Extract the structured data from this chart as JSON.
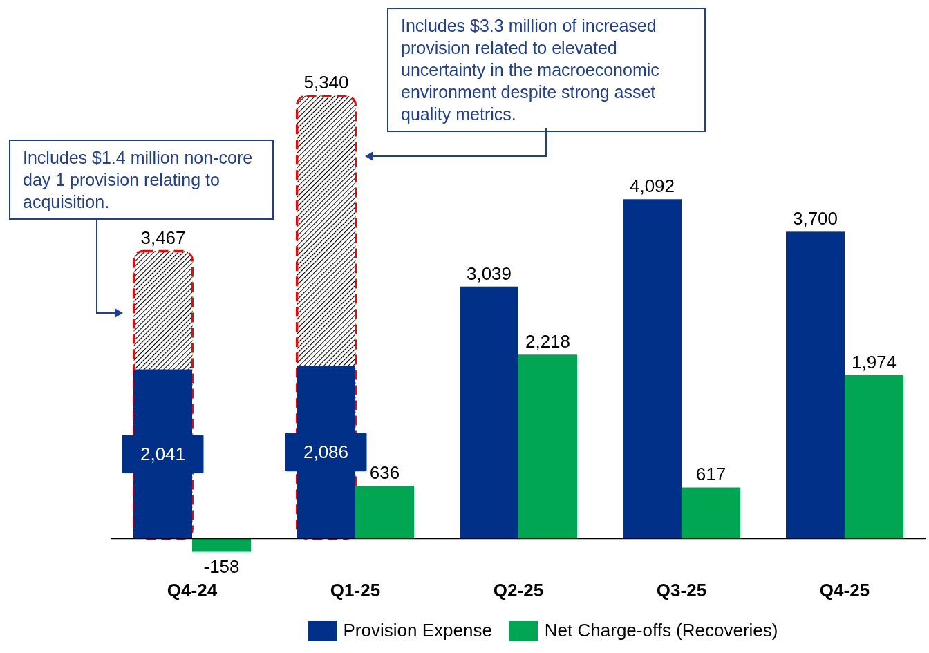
{
  "chart_data": {
    "type": "bar",
    "categories": [
      "Q4-24",
      "Q1-25",
      "Q2-25",
      "Q3-25",
      "Q4-25"
    ],
    "series": [
      {
        "color": "#ff0000",
        "values": [
          3467,
          5340,
          null,
          null,
          null
        ],
        "value_labels": [
          "3,467",
          "5,340",
          null,
          null,
          null
        ]
      },
      {
        "name": "Provision Expense",
        "color": "#003087",
        "values": [
          2041,
          2086,
          3039,
          4092,
          3700
        ],
        "value_labels": [
          "2,041",
          "2,086",
          "3,039",
          "4,092",
          "3,700"
        ]
      },
      {
        "name": "Net Charge-offs (Recoveries)",
        "color": "#00a651",
        "values": [
          -158,
          636,
          2218,
          617,
          1974
        ],
        "value_labels": [
          "-158",
          "636",
          "2,218",
          "617",
          "1,974"
        ]
      }
    ],
    "legend": "bottom",
    "annotations": [
      "Includes $1.4 million non-core day 1 provision relating to acquisition.",
      "Includes $3.3 million of increased provision related to elevated uncertainty in the macroeconomic environment despite strong asset quality metrics."
    ]
  }
}
